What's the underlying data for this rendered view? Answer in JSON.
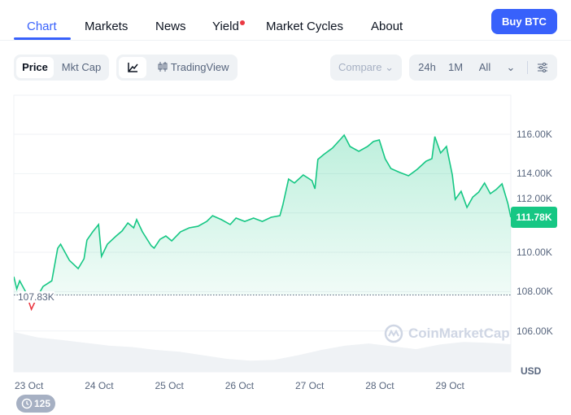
{
  "nav": {
    "tabs": [
      {
        "label": "Chart",
        "active": true
      },
      {
        "label": "Markets"
      },
      {
        "label": "News"
      },
      {
        "label": "Yield",
        "badge_dot": true
      },
      {
        "label": "Market Cycles"
      },
      {
        "label": "About"
      }
    ],
    "buy_label": "Buy BTC"
  },
  "controls": {
    "price": "Price",
    "mkt_cap": "Mkt Cap",
    "tradingview": "TradingView",
    "compare": "Compare",
    "ranges": [
      "24h",
      "1M",
      "All"
    ],
    "selected_metric": "Price",
    "selected_chart": "line"
  },
  "colors": {
    "accent": "#3861fb",
    "up": "#16c784",
    "down": "#ea3943"
  },
  "watermark": "CoinMarketCap",
  "badge": {
    "icon": "history-icon",
    "count": "125"
  },
  "chart_data": {
    "type": "line",
    "currency": "USD",
    "open_reference": 107.83,
    "open_label": "107.83K",
    "current_label": "111.78K",
    "y_unit": "K USD",
    "ylim": [
      105,
      118
    ],
    "yticks": [
      "106.00K",
      "108.00K",
      "110.00K",
      "112.00K",
      "114.00K",
      "116.00K"
    ],
    "ytick_values": [
      106,
      108,
      110,
      112,
      114,
      116
    ],
    "xticks": [
      "23 Oct",
      "24 Oct",
      "25 Oct",
      "26 Oct",
      "27 Oct",
      "28 Oct",
      "29 Oct"
    ],
    "xlim": [
      "Oct 22 19:00",
      "Oct 29 21:00"
    ],
    "grid": true,
    "points": [
      [
        "Oct 22 19:00",
        108.76
      ],
      [
        "Oct 22 20:00",
        108.14
      ],
      [
        "Oct 22 21:00",
        108.55
      ],
      [
        "Oct 22 23:00",
        108.0
      ],
      [
        "Oct 23 01:00",
        107.1
      ],
      [
        "Oct 23 03:00",
        107.73
      ],
      [
        "Oct 23 05:00",
        108.26
      ],
      [
        "Oct 23 08:00",
        108.55
      ],
      [
        "Oct 23 10:00",
        110.2
      ],
      [
        "Oct 23 11:00",
        110.41
      ],
      [
        "Oct 23 14:00",
        109.59
      ],
      [
        "Oct 23 17:00",
        109.17
      ],
      [
        "Oct 23 19:00",
        109.67
      ],
      [
        "Oct 23 20:00",
        110.62
      ],
      [
        "Oct 23 22:00",
        111.04
      ],
      [
        "Oct 24 00:00",
        111.41
      ],
      [
        "Oct 24 01:00",
        109.79
      ],
      [
        "Oct 24 03:00",
        110.41
      ],
      [
        "Oct 24 06:00",
        110.83
      ],
      [
        "Oct 24 08:00",
        111.08
      ],
      [
        "Oct 24 10:00",
        111.49
      ],
      [
        "Oct 24 12:00",
        111.24
      ],
      [
        "Oct 24 13:00",
        111.66
      ],
      [
        "Oct 24 15:00",
        111.04
      ],
      [
        "Oct 24 18:00",
        110.33
      ],
      [
        "Oct 24 19:00",
        110.21
      ],
      [
        "Oct 24 21:00",
        110.66
      ],
      [
        "Oct 24 23:00",
        110.83
      ],
      [
        "Oct 25 01:00",
        110.58
      ],
      [
        "Oct 25 04:00",
        111.04
      ],
      [
        "Oct 25 07:00",
        111.24
      ],
      [
        "Oct 25 10:00",
        111.32
      ],
      [
        "Oct 25 13:00",
        111.57
      ],
      [
        "Oct 25 15:00",
        111.86
      ],
      [
        "Oct 25 18:00",
        111.66
      ],
      [
        "Oct 25 21:00",
        111.41
      ],
      [
        "Oct 25 23:00",
        111.74
      ],
      [
        "Oct 26 02:00",
        111.57
      ],
      [
        "Oct 26 05:00",
        111.74
      ],
      [
        "Oct 26 08:00",
        111.57
      ],
      [
        "Oct 26 11:00",
        111.78
      ],
      [
        "Oct 26 14:00",
        111.86
      ],
      [
        "Oct 26 15:00",
        112.4
      ],
      [
        "Oct 26 17:00",
        113.72
      ],
      [
        "Oct 26 19:00",
        113.52
      ],
      [
        "Oct 26 22:00",
        113.93
      ],
      [
        "Oct 27 01:00",
        113.64
      ],
      [
        "Oct 27 02:00",
        113.23
      ],
      [
        "Oct 27 03:00",
        114.72
      ],
      [
        "Oct 27 05:00",
        114.97
      ],
      [
        "Oct 27 08:00",
        115.3
      ],
      [
        "Oct 27 11:00",
        115.79
      ],
      [
        "Oct 27 12:00",
        115.96
      ],
      [
        "Oct 27 14:00",
        115.38
      ],
      [
        "Oct 27 17:00",
        115.13
      ],
      [
        "Oct 27 20:00",
        115.38
      ],
      [
        "Oct 27 22:00",
        115.63
      ],
      [
        "Oct 28 00:00",
        115.71
      ],
      [
        "Oct 28 02:00",
        114.76
      ],
      [
        "Oct 28 04:00",
        114.26
      ],
      [
        "Oct 28 07:00",
        114.06
      ],
      [
        "Oct 28 10:00",
        113.89
      ],
      [
        "Oct 28 13:00",
        114.22
      ],
      [
        "Oct 28 16:00",
        114.63
      ],
      [
        "Oct 28 18:00",
        114.76
      ],
      [
        "Oct 28 19:00",
        115.88
      ],
      [
        "Oct 28 21:00",
        115.05
      ],
      [
        "Oct 28 23:00",
        115.38
      ],
      [
        "Oct 29 01:00",
        113.93
      ],
      [
        "Oct 29 02:00",
        112.69
      ],
      [
        "Oct 29 04:00",
        113.1
      ],
      [
        "Oct 29 06:00",
        112.28
      ],
      [
        "Oct 29 08:00",
        112.81
      ],
      [
        "Oct 29 10:00",
        113.06
      ],
      [
        "Oct 29 12:00",
        113.52
      ],
      [
        "Oct 29 14:00",
        112.98
      ],
      [
        "Oct 29 16:00",
        113.19
      ],
      [
        "Oct 29 18:00",
        113.48
      ],
      [
        "Oct 29 20:00",
        112.48
      ],
      [
        "Oct 29 21:00",
        111.78
      ]
    ],
    "volume_relative": [
      1.0,
      0.85,
      0.78,
      0.7,
      0.62,
      0.58,
      0.5,
      0.45,
      0.35,
      0.25,
      0.2,
      0.22,
      0.35,
      0.5,
      0.62,
      0.68,
      0.6,
      0.52,
      0.65,
      0.72,
      0.7,
      0.66
    ]
  }
}
